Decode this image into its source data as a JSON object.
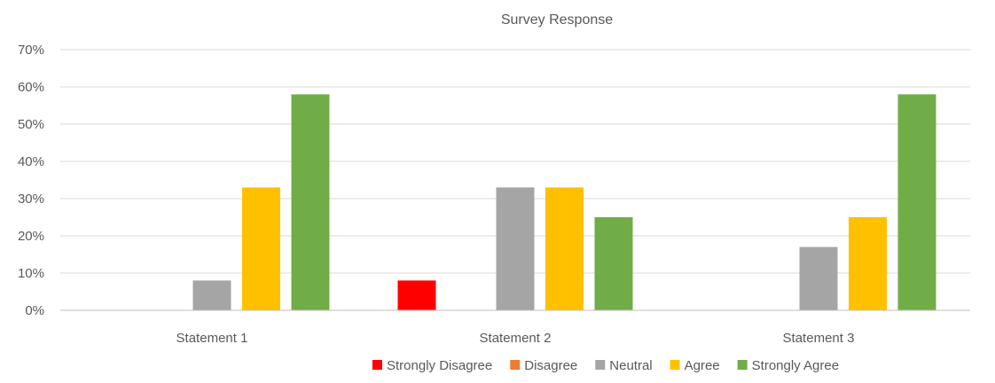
{
  "chart_data": {
    "type": "bar",
    "title": "Survey Response",
    "xlabel": "",
    "ylabel": "",
    "categories": [
      "Statement 1",
      "Statement 2",
      "Statement 3"
    ],
    "series": [
      {
        "name": "Strongly Disagree",
        "color": "#ff0000",
        "values": [
          0,
          8,
          0
        ]
      },
      {
        "name": "Disagree",
        "color": "#ed7d31",
        "values": [
          0,
          0,
          0
        ]
      },
      {
        "name": "Neutral",
        "color": "#a5a5a5",
        "values": [
          8,
          33,
          17
        ]
      },
      {
        "name": "Agree",
        "color": "#ffc000",
        "values": [
          33,
          33,
          25
        ]
      },
      {
        "name": "Strongly Agree",
        "color": "#70ad47",
        "values": [
          58,
          25,
          58
        ]
      }
    ],
    "ylim": [
      0,
      70
    ],
    "yticks": [
      0,
      10,
      20,
      30,
      40,
      50,
      60,
      70
    ],
    "ytick_labels": [
      "0%",
      "10%",
      "20%",
      "30%",
      "40%",
      "50%",
      "60%",
      "70%"
    ],
    "grid": true,
    "legend_position": "bottom-right"
  }
}
